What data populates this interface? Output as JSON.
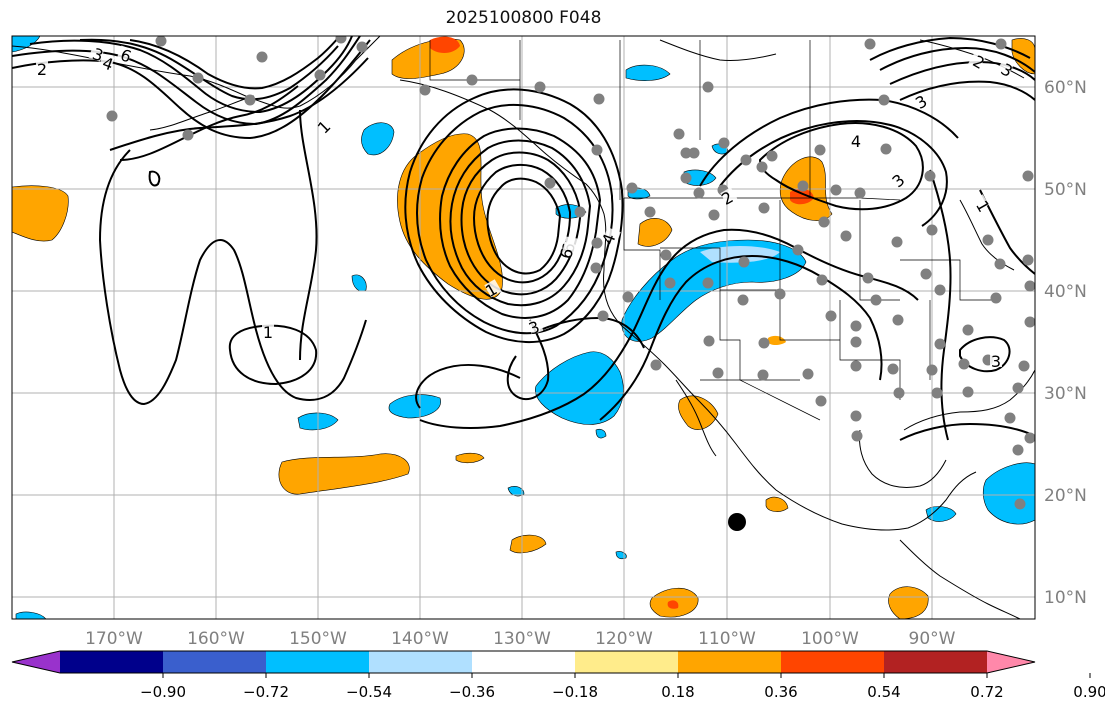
{
  "title": "2025100800 F048",
  "map": {
    "lon_labels": [
      "170°W",
      "160°W",
      "150°W",
      "140°W",
      "130°W",
      "120°W",
      "110°W",
      "100°W",
      "90°W"
    ],
    "lat_labels": [
      "60°N",
      "50°N",
      "40°N",
      "30°N",
      "20°N",
      "10°N"
    ],
    "contour_labels": [
      "2",
      "3",
      "4",
      "6",
      "1",
      "1",
      "1",
      "6",
      "3",
      "4",
      "2",
      "4",
      "3",
      "2",
      "3",
      "1",
      "3",
      "6",
      "3"
    ],
    "colors": {
      "positive_mid": "#ffa500",
      "positive_high": "#ff4500",
      "positive_max": "#b22222",
      "negative_mid": "#00bfff",
      "negative_low": "#b0e0ff",
      "station": "#808080",
      "grid": "#b0b0b0",
      "contour": "#000000"
    }
  },
  "colorbar": {
    "ticks": [
      "−0.90",
      "−0.72",
      "−0.54",
      "−0.36",
      "−0.18",
      "0.18",
      "0.36",
      "0.54",
      "0.72",
      "0.90"
    ],
    "colors": [
      "#9932cc",
      "#00008b",
      "#3a5fcd",
      "#00bfff",
      "#b0e0ff",
      "#ffffff",
      "#ffec8b",
      "#ffa500",
      "#ff4500",
      "#b22222",
      "#ff88aa"
    ]
  }
}
